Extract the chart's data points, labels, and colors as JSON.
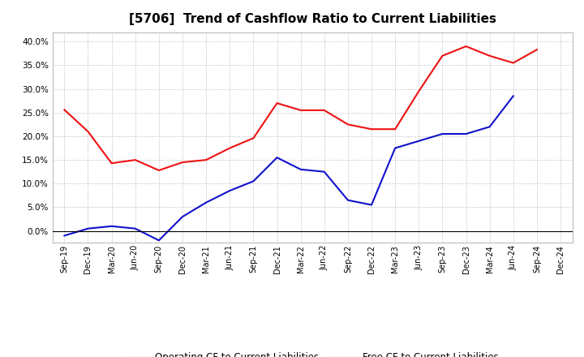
{
  "title": "[5706]  Trend of Cashflow Ratio to Current Liabilities",
  "x_labels": [
    "Sep-19",
    "Dec-19",
    "Mar-20",
    "Jun-20",
    "Sep-20",
    "Dec-20",
    "Mar-21",
    "Jun-21",
    "Sep-21",
    "Dec-21",
    "Mar-22",
    "Jun-22",
    "Sep-22",
    "Dec-22",
    "Mar-23",
    "Jun-23",
    "Sep-23",
    "Dec-23",
    "Mar-24",
    "Jun-24",
    "Sep-24",
    "Dec-24"
  ],
  "operating_cf": [
    0.256,
    0.21,
    0.143,
    0.15,
    0.128,
    0.145,
    0.15,
    0.175,
    0.196,
    0.27,
    0.255,
    0.255,
    0.225,
    0.215,
    0.215,
    0.295,
    0.37,
    0.39,
    0.37,
    0.355,
    0.383,
    null
  ],
  "free_cf": [
    -0.01,
    0.005,
    0.01,
    0.005,
    -0.02,
    0.03,
    0.06,
    0.085,
    0.105,
    0.155,
    0.13,
    0.125,
    0.065,
    0.055,
    0.175,
    0.19,
    0.205,
    0.205,
    0.22,
    0.285,
    null,
    null
  ],
  "operating_color": "#EE1111",
  "free_color": "#1111CC",
  "ylim": [
    -0.025,
    0.42
  ],
  "yticks": [
    0.0,
    0.05,
    0.1,
    0.15,
    0.2,
    0.25,
    0.3,
    0.35,
    0.4
  ],
  "background_color": "#FFFFFF",
  "plot_bg_color": "#FFFFFF",
  "legend_operating": "Operating CF to Current Liabilities",
  "legend_free": "Free CF to Current Liabilities",
  "title_fontsize": 11,
  "tick_fontsize": 7,
  "legend_fontsize": 8.5
}
